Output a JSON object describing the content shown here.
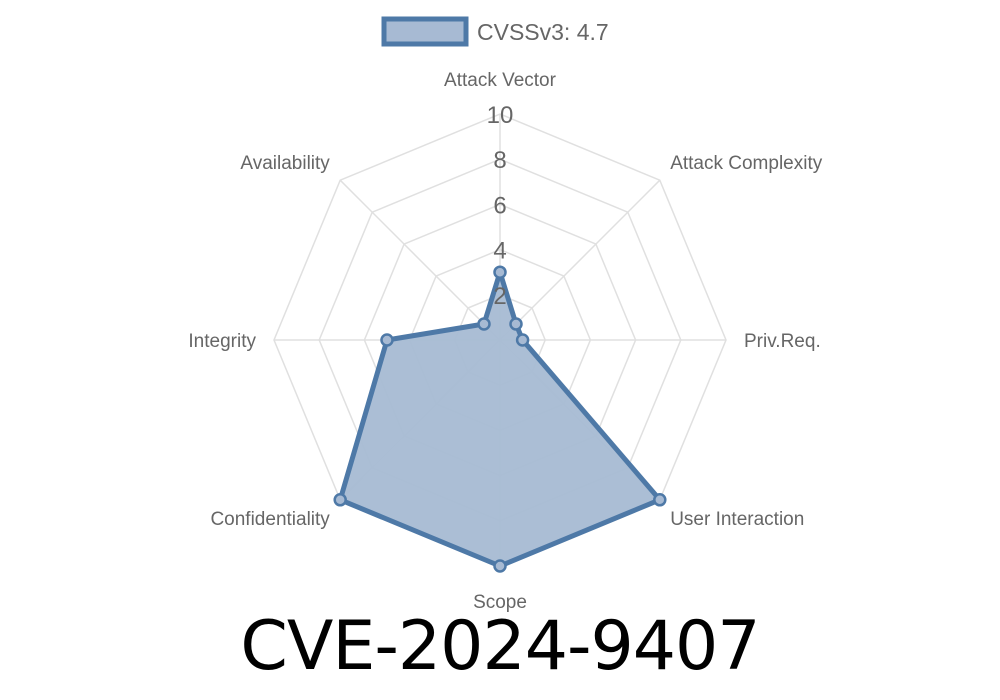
{
  "title": "CVE-2024-9407",
  "colors": {
    "series_stroke": "#4e79a7",
    "series_fill": "#a7bad3",
    "grid": "#e0e0e0",
    "text": "#666666"
  },
  "chart_data": {
    "type": "radar",
    "categories": [
      "Attack Vector",
      "Attack Complexity",
      "Priv.Req.",
      "User Interaction",
      "Scope",
      "Confidentiality",
      "Integrity",
      "Availability"
    ],
    "series": [
      {
        "name": "CVSSv3: 4.7",
        "values": [
          3.0,
          1.0,
          1.0,
          10.0,
          10.0,
          10.0,
          5.0,
          1.0
        ]
      }
    ],
    "rlim": [
      0,
      10
    ],
    "ticks": [
      2,
      4,
      6,
      8,
      10
    ],
    "legend_position": "top-center",
    "grid": true
  }
}
